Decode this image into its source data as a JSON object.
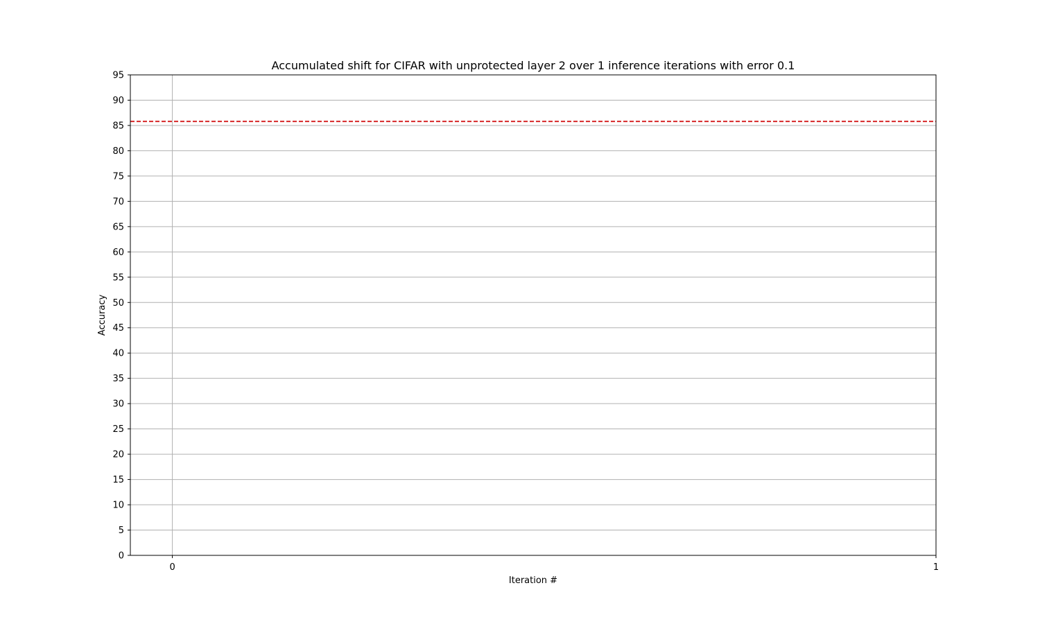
{
  "chart_data": {
    "type": "line",
    "title": "Accumulated shift for CIFAR with unprotected layer 2 over 1 inference iterations with error 0.1",
    "xlabel": "Iteration #",
    "ylabel": "Accuracy",
    "xlim": [
      -0.055,
      1.0
    ],
    "ylim": [
      0,
      95
    ],
    "x_ticks": [
      0,
      1
    ],
    "x_tick_labels": [
      "0",
      "1"
    ],
    "y_ticks": [
      0,
      5,
      10,
      15,
      20,
      25,
      30,
      35,
      40,
      45,
      50,
      55,
      60,
      65,
      70,
      75,
      80,
      85,
      90,
      95
    ],
    "y_tick_labels": [
      "0",
      "5",
      "10",
      "15",
      "20",
      "25",
      "30",
      "35",
      "40",
      "45",
      "50",
      "55",
      "60",
      "65",
      "70",
      "75",
      "80",
      "85",
      "90",
      "95"
    ],
    "grid": true,
    "series": [],
    "reference_lines": [
      {
        "orientation": "horizontal",
        "y": 85.8,
        "style": "dashed",
        "color": "#d62728"
      }
    ]
  }
}
